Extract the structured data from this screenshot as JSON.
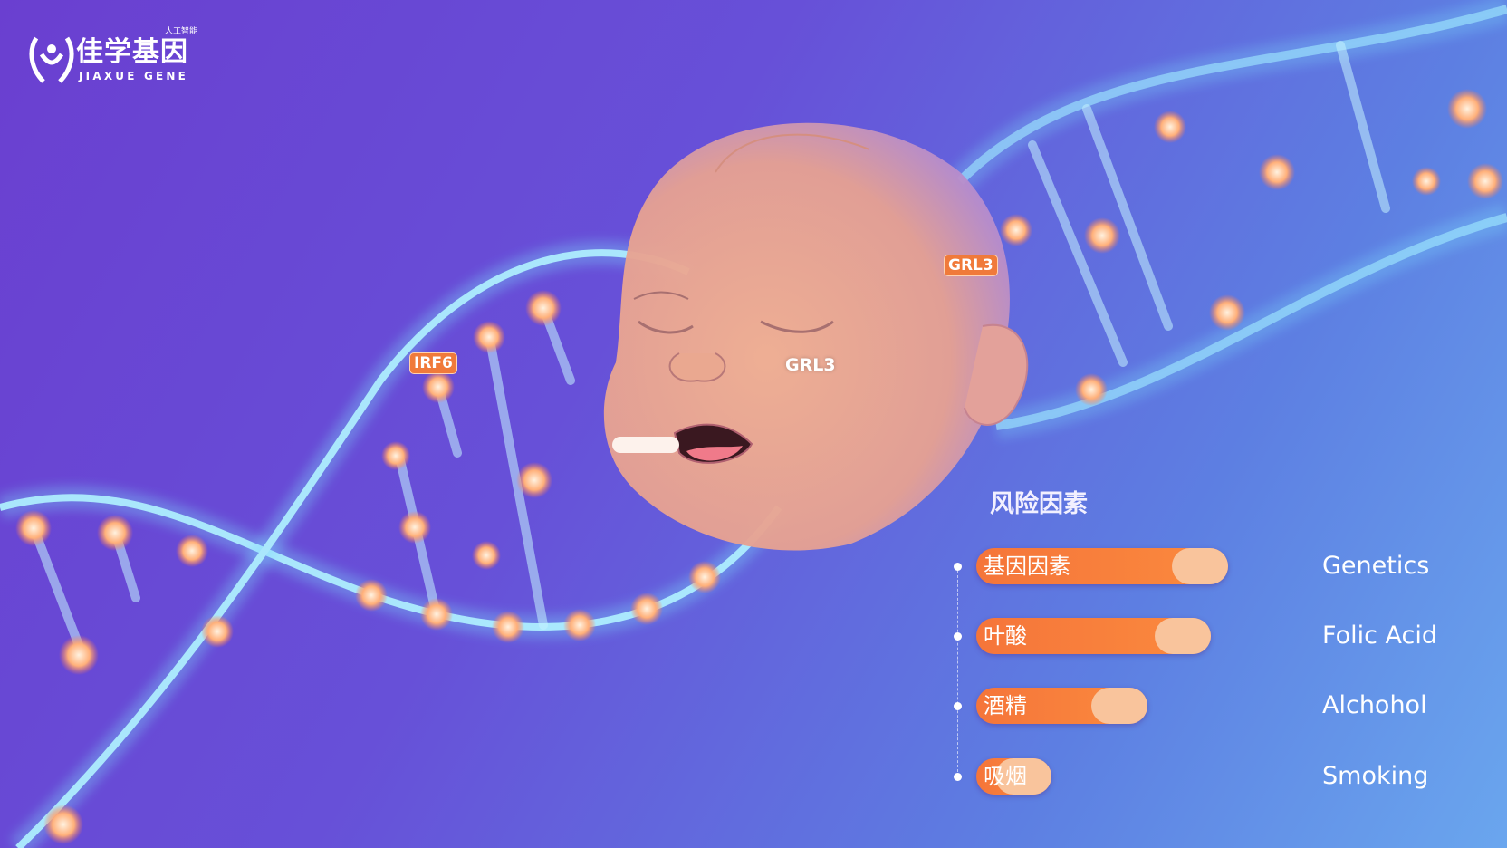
{
  "brand": {
    "name_cn": "佳学基因",
    "name_en": "JIAXUE GENE",
    "tagline": "人工智能"
  },
  "gene_labels": [
    "IRF6",
    "GRL3",
    "GRL3"
  ],
  "risk_panel": {
    "title": "风险因素",
    "bar_color": "#f77f3c",
    "knob_color": "#f9c49c",
    "items": [
      {
        "label_cn": "基因因素",
        "label_en": "Genetics",
        "level": 1.0
      },
      {
        "label_cn": "叶酸",
        "label_en": "Folic Acid",
        "level": 0.93
      },
      {
        "label_cn": "酒精",
        "label_en": "Alchohol",
        "level": 0.68
      },
      {
        "label_cn": "吸烟",
        "label_en": "Smoking",
        "level": 0.3
      }
    ]
  }
}
